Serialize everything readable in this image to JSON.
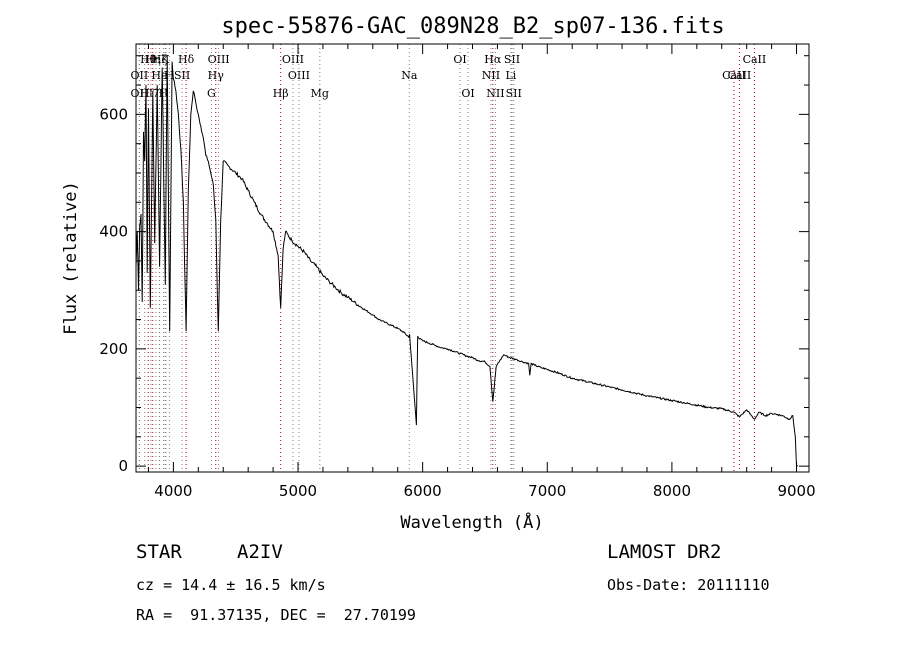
{
  "chart_data": {
    "type": "line",
    "title": "spec-55876-GAC_089N28_B2_sp07-136.fits",
    "xlabel": "Wavelength (Å)",
    "ylabel": "Flux (relative)",
    "xlim": [
      3700,
      9100
    ],
    "ylim": [
      -10,
      720
    ],
    "xticks": [
      4000,
      5000,
      6000,
      7000,
      8000,
      9000
    ],
    "yticks": [
      0,
      200,
      400,
      600
    ],
    "grid": false,
    "series": [
      {
        "values_note": "",
        "x": [
          3700,
          3710,
          3720,
          3730,
          3740,
          3750,
          3760,
          3770,
          3780,
          3790,
          3800,
          3815,
          3835,
          3850,
          3870,
          3889,
          3910,
          3935,
          3950,
          3970,
          3990,
          4000,
          4020,
          4040,
          4060,
          4080,
          4102,
          4120,
          4140,
          4160,
          4180,
          4200,
          4220,
          4240,
          4260,
          4280,
          4300,
          4320,
          4340,
          4360,
          4380,
          4400,
          4450,
          4500,
          4550,
          4600,
          4650,
          4700,
          4750,
          4800,
          4840,
          4861,
          4880,
          4900,
          4950,
          5000,
          5050,
          5100,
          5150,
          5200,
          5250,
          5300,
          5350,
          5400,
          5450,
          5500,
          5550,
          5600,
          5650,
          5700,
          5750,
          5800,
          5850,
          5889,
          5895,
          5950,
          5960,
          5970,
          6000,
          6050,
          6100,
          6150,
          6200,
          6250,
          6300,
          6350,
          6400,
          6450,
          6500,
          6540,
          6563,
          6590,
          6650,
          6700,
          6750,
          6800,
          6850,
          6860,
          6870,
          6900,
          6950,
          7000,
          7100,
          7200,
          7300,
          7400,
          7500,
          7600,
          7700,
          7800,
          7900,
          8000,
          8100,
          8200,
          8300,
          8400,
          8498,
          8542,
          8600,
          8662,
          8700,
          8750,
          8800,
          8850,
          8900,
          8940,
          8970,
          8990,
          9000,
          9010
        ],
        "y": [
          340,
          400,
          300,
          410,
          430,
          280,
          570,
          520,
          650,
          330,
          610,
          270,
          640,
          380,
          650,
          340,
          680,
          310,
          700,
          230,
          690,
          660,
          640,
          600,
          540,
          450,
          230,
          470,
          600,
          640,
          620,
          600,
          580,
          560,
          530,
          520,
          500,
          480,
          420,
          230,
          420,
          520,
          510,
          500,
          490,
          470,
          450,
          430,
          415,
          400,
          360,
          270,
          370,
          400,
          385,
          375,
          365,
          350,
          340,
          325,
          315,
          305,
          295,
          288,
          280,
          272,
          265,
          258,
          250,
          245,
          240,
          235,
          228,
          220,
          225,
          70,
          222,
          218,
          214,
          210,
          206,
          202,
          200,
          196,
          192,
          188,
          185,
          180,
          178,
          170,
          110,
          170,
          190,
          185,
          182,
          178,
          175,
          155,
          175,
          172,
          168,
          165,
          158,
          150,
          145,
          140,
          135,
          130,
          125,
          120,
          116,
          112,
          108,
          104,
          100,
          98,
          92,
          84,
          96,
          80,
          92,
          86,
          90,
          88,
          85,
          80,
          86,
          50,
          0,
          0
        ]
      }
    ],
    "lines": [
      {
        "label": "Hθ",
        "x": 3798,
        "color": "#c00000",
        "row": 0
      },
      {
        "label": "Hη",
        "x": 3835,
        "color": "#c00000",
        "row": 0
      },
      {
        "label": "Hζ",
        "x": 3889,
        "color": "#c00000",
        "row": 0
      },
      {
        "label": "K",
        "x": 3934,
        "color": "#808080",
        "row": 0
      },
      {
        "label": "Hδ",
        "x": 4102,
        "color": "#c00000",
        "row": 0
      },
      {
        "label": "OIII",
        "x": 4363,
        "color": "#808080",
        "row": 0
      },
      {
        "label": "OIII",
        "x": 4959,
        "color": "#808080",
        "row": 0
      },
      {
        "label": "OI",
        "x": 6300,
        "color": "#808080",
        "row": 0
      },
      {
        "label": "Hα",
        "x": 6563,
        "color": "#c00000",
        "row": 0
      },
      {
        "label": "SII",
        "x": 6717,
        "color": "#808080",
        "row": 0
      },
      {
        "label": "CaII",
        "x": 8662,
        "color": "#c00000",
        "row": 0
      },
      {
        "label": "OII",
        "x": 3727,
        "color": "#808080",
        "row": 1
      },
      {
        "label": "H",
        "x": 3968,
        "color": "#808080",
        "row": 1
      },
      {
        "label": "He",
        "x": 3888,
        "color": "#808080",
        "row": 1
      },
      {
        "label": "I",
        "x": 3940,
        "color": "#808080",
        "row": 1
      },
      {
        "label": "SII",
        "x": 4070,
        "color": "#808080",
        "row": 1
      },
      {
        "label": "Hγ",
        "x": 4340,
        "color": "#c00000",
        "row": 1
      },
      {
        "label": "OIII",
        "x": 5007,
        "color": "#808080",
        "row": 1
      },
      {
        "label": "Na",
        "x": 5893,
        "color": "#808080",
        "row": 1
      },
      {
        "label": "NII",
        "x": 6548,
        "color": "#808080",
        "row": 1
      },
      {
        "label": "Li",
        "x": 6708,
        "color": "#808080",
        "row": 1
      },
      {
        "label": "CaII",
        "x": 8542,
        "color": "#c00000",
        "row": 1
      },
      {
        "label": "OII",
        "x": 3727,
        "color": "#808080",
        "row": 2
      },
      {
        "label": "H",
        "x": 3770,
        "color": "#808080",
        "row": 2
      },
      {
        "label": "I",
        "x": 3820,
        "color": "#808080",
        "row": 2
      },
      {
        "label": "7",
        "x": 3860,
        "color": "#808080",
        "row": 2
      },
      {
        "label": "H",
        "x": 3920,
        "color": "#808080",
        "row": 2
      },
      {
        "label": "G",
        "x": 4305,
        "color": "#808080",
        "row": 2
      },
      {
        "label": "Hβ",
        "x": 4861,
        "color": "#c00000",
        "row": 2
      },
      {
        "label": "Mg",
        "x": 5175,
        "color": "#808080",
        "row": 2
      },
      {
        "label": "OI",
        "x": 6364,
        "color": "#808080",
        "row": 2
      },
      {
        "label": "NII",
        "x": 6584,
        "color": "#808080",
        "row": 2
      },
      {
        "label": "SII",
        "x": 6731,
        "color": "#808080",
        "row": 2
      },
      {
        "label": "CaII",
        "x": 8498,
        "color": "#c00000",
        "row": -1
      }
    ]
  },
  "info": {
    "star_label": "STAR",
    "subclass": "A2IV",
    "survey": "LAMOST DR2",
    "cz_text": "cz = 14.4 ± 16.5 km/s",
    "obs_date": "Obs-Date: 20111110",
    "coords": "RA =  91.37135, DEC =  27.70199"
  }
}
